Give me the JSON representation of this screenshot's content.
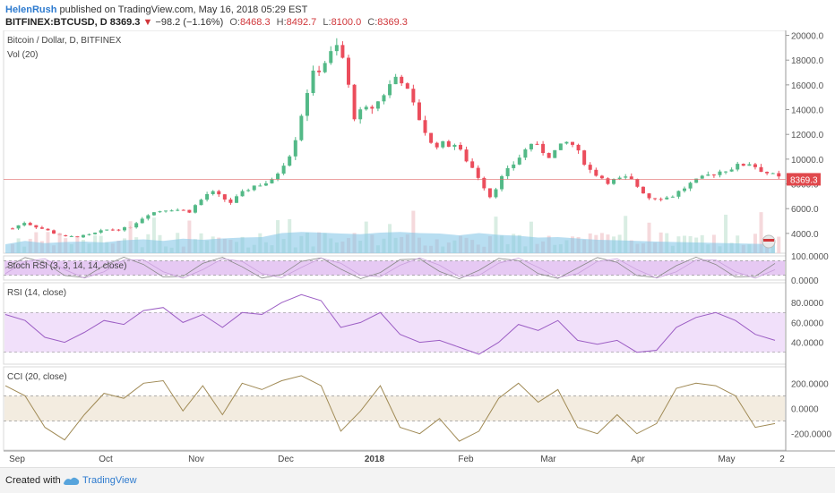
{
  "header": {
    "author": "HelenRush",
    "published": "published on TradingView.com, May 16, 2018 05:29 EST",
    "symbol": "BITFINEX:BTCUSD, D",
    "last": "8369.3",
    "change": "−98.2 (−1.16%)",
    "open_label": "O:",
    "open": "8468.3",
    "high_label": "H:",
    "high": "8492.7",
    "low_label": "L:",
    "low": "8100.0",
    "close_label": "C:",
    "close": "8369.3"
  },
  "footer": {
    "created": "Created with",
    "brand": "TradingView"
  },
  "colors": {
    "up": "#53b987",
    "down": "#eb4d5c",
    "volume": "#7ec3e6",
    "rsi": "#9c5ec4",
    "cci": "#a08a55"
  },
  "chart_data": {
    "type": "candlestick",
    "title": "Bitcoin / Dollar, D, BITFINEX",
    "volume_label": "Vol (20)",
    "last_price_label": "8369.3",
    "price_ticks": [
      "4000.0",
      "6000.0",
      "8000.0",
      "10000.0",
      "12000.0",
      "14000.0",
      "16000.0",
      "18000.0",
      "20000.0"
    ],
    "price_range": [
      2400,
      20400
    ],
    "x_labels": [
      "Sep",
      "Oct",
      "Nov",
      "Dec",
      "2018",
      "Feb",
      "Mar",
      "Apr",
      "May",
      "2"
    ],
    "price_points": [
      [
        "2017-08-28",
        4400
      ],
      [
        "2017-09-01",
        4900
      ],
      [
        "2017-09-08",
        4300
      ],
      [
        "2017-09-15",
        3700
      ],
      [
        "2017-09-22",
        3800
      ],
      [
        "2017-09-29",
        4300
      ],
      [
        "2017-10-06",
        4400
      ],
      [
        "2017-10-13",
        5600
      ],
      [
        "2017-10-20",
        6000
      ],
      [
        "2017-10-27",
        5800
      ],
      [
        "2017-11-03",
        7400
      ],
      [
        "2017-11-10",
        6500
      ],
      [
        "2017-11-17",
        7800
      ],
      [
        "2017-11-24",
        8200
      ],
      [
        "2017-12-01",
        10800
      ],
      [
        "2017-12-07",
        16500
      ],
      [
        "2017-12-17",
        19300
      ],
      [
        "2017-12-22",
        13500
      ],
      [
        "2017-12-29",
        14300
      ],
      [
        "2018-01-06",
        17000
      ],
      [
        "2018-01-12",
        13800
      ],
      [
        "2018-01-17",
        11200
      ],
      [
        "2018-01-25",
        11200
      ],
      [
        "2018-02-01",
        9000
      ],
      [
        "2018-02-06",
        7000
      ],
      [
        "2018-02-10",
        8500
      ],
      [
        "2018-02-20",
        11300
      ],
      [
        "2018-02-26",
        10300
      ],
      [
        "2018-03-05",
        11500
      ],
      [
        "2018-03-12",
        9100
      ],
      [
        "2018-03-18",
        8200
      ],
      [
        "2018-03-25",
        8500
      ],
      [
        "2018-04-01",
        6900
      ],
      [
        "2018-04-08",
        6900
      ],
      [
        "2018-04-15",
        8000
      ],
      [
        "2018-04-22",
        8800
      ],
      [
        "2018-04-29",
        9300
      ],
      [
        "2018-05-05",
        9700
      ],
      [
        "2018-05-10",
        9000
      ],
      [
        "2018-05-16",
        8369
      ]
    ],
    "volume_ma": [
      40,
      55,
      45,
      50,
      52,
      48,
      58,
      62,
      55,
      65,
      60,
      66,
      70,
      72,
      90,
      95,
      92,
      88,
      85,
      92,
      95,
      90,
      88,
      80,
      90,
      82,
      78,
      70,
      72,
      66,
      60,
      58,
      55,
      52,
      50,
      48,
      46,
      44,
      42,
      40
    ],
    "stoch": {
      "label": "Stoch RSI (3, 3, 14, 14, close)",
      "ticks": [
        "100.0000",
        "0.0000"
      ],
      "range": [
        0,
        100
      ],
      "bands": [
        80,
        20
      ]
    },
    "rsi": {
      "label": "RSI (14, close)",
      "ticks": [
        "80.0000",
        "60.0000",
        "40.0000"
      ],
      "range": [
        18,
        100
      ],
      "bands": [
        70,
        30
      ],
      "values": [
        68,
        62,
        45,
        40,
        50,
        62,
        58,
        72,
        75,
        60,
        68,
        55,
        70,
        68,
        80,
        88,
        82,
        55,
        60,
        70,
        48,
        40,
        42,
        35,
        28,
        40,
        58,
        52,
        62,
        42,
        38,
        42,
        30,
        32,
        55,
        65,
        70,
        62,
        48,
        42
      ]
    },
    "cci": {
      "label": "CCI (20, close)",
      "ticks": [
        "200.0000",
        "0.0000",
        "-200.0000"
      ],
      "range": [
        -330,
        330
      ],
      "bands": [
        100,
        -100
      ],
      "values": [
        180,
        100,
        -150,
        -250,
        -50,
        120,
        80,
        200,
        220,
        -20,
        180,
        -50,
        200,
        150,
        220,
        260,
        180,
        -180,
        -20,
        180,
        -150,
        -200,
        -80,
        -260,
        -180,
        80,
        200,
        50,
        150,
        -150,
        -200,
        -50,
        -200,
        -120,
        160,
        200,
        180,
        100,
        -150,
        -120
      ]
    }
  }
}
